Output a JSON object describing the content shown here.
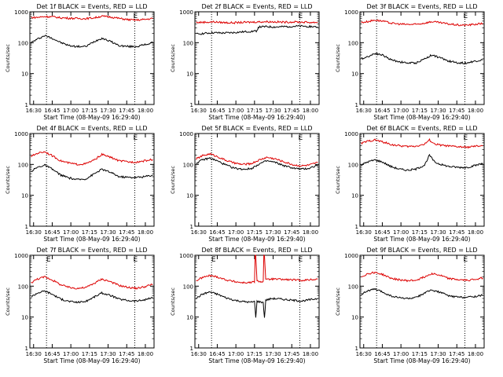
{
  "page": {
    "background": "#ffffff"
  },
  "colors": {
    "events": "#000000",
    "lld": "#dd0000",
    "axis": "#000000"
  },
  "chart_data": [
    {
      "type": "line",
      "title": "Det 1f BLACK = Events, RED = LLD",
      "xlabel": "Start Time (08-May-09 16:29:40)",
      "ylabel": "Counts/sec",
      "ylog": true,
      "ylim": [
        1,
        1000
      ],
      "xlim": [
        0,
        100
      ],
      "xticks": [
        "16:30",
        "16:45",
        "17:00",
        "17:15",
        "17:30",
        "17:45",
        "18:00"
      ],
      "yticks": [
        "1",
        "10",
        "100",
        "1000"
      ],
      "vlines": [
        13.4,
        84.5
      ],
      "flags": [
        {
          "label": "E",
          "x": 85
        }
      ],
      "series": [
        {
          "name": "Events",
          "color": "#000000",
          "x": [
            1,
            6,
            12,
            18,
            25,
            32,
            38,
            45,
            52,
            58,
            65,
            72,
            80,
            86,
            92,
            99
          ],
          "y": [
            100,
            130,
            170,
            140,
            100,
            80,
            75,
            75,
            110,
            140,
            110,
            80,
            75,
            75,
            85,
            100
          ]
        },
        {
          "name": "LLD",
          "color": "#dd0000",
          "x": [
            1,
            6,
            12,
            18,
            25,
            32,
            38,
            45,
            52,
            58,
            65,
            72,
            80,
            86,
            92,
            99
          ],
          "y": [
            650,
            660,
            700,
            690,
            640,
            620,
            610,
            600,
            640,
            720,
            680,
            610,
            550,
            540,
            560,
            610
          ]
        }
      ]
    },
    {
      "type": "line",
      "title": "Det 2f BLACK = Events, RED = LLD",
      "xlabel": "Start Time (08-May-09 16:29:40)",
      "ylabel": "Counts/sec",
      "ylog": true,
      "ylim": [
        1,
        1000
      ],
      "xlim": [
        0,
        100
      ],
      "xticks": [
        "16:30",
        "16:45",
        "17:00",
        "17:15",
        "17:30",
        "17:45",
        "18:00"
      ],
      "yticks": [
        "1",
        "10",
        "100",
        "1000"
      ],
      "vlines": [
        13.4,
        84.5
      ],
      "flags": [
        {
          "label": "E",
          "x": 85
        }
      ],
      "series": [
        {
          "name": "Events",
          "color": "#000000",
          "x": [
            1,
            8,
            15,
            22,
            30,
            37,
            44,
            50,
            51,
            58,
            65,
            72,
            80,
            88,
            95,
            99
          ],
          "y": [
            190,
            200,
            210,
            205,
            210,
            220,
            230,
            240,
            320,
            330,
            320,
            330,
            340,
            340,
            330,
            320
          ]
        },
        {
          "name": "LLD",
          "color": "#dd0000",
          "x": [
            1,
            8,
            15,
            22,
            30,
            37,
            44,
            50,
            58,
            65,
            72,
            80,
            88,
            95,
            99
          ],
          "y": [
            450,
            460,
            470,
            450,
            440,
            450,
            460,
            470,
            480,
            470,
            460,
            470,
            460,
            450,
            460
          ]
        }
      ]
    },
    {
      "type": "line",
      "title": "Det 3f BLACK = Events, RED = LLD",
      "xlabel": "Start Time (08-May-09 16:29:40)",
      "ylabel": "Counts/sec",
      "ylog": true,
      "ylim": [
        1,
        1000
      ],
      "xlim": [
        0,
        100
      ],
      "xticks": [
        "16:30",
        "16:45",
        "17:00",
        "17:15",
        "17:30",
        "17:45",
        "18:00"
      ],
      "yticks": [
        "1",
        "10",
        "100",
        "1000"
      ],
      "vlines": [
        13.4,
        84.5
      ],
      "flags": [
        {
          "label": "E",
          "x": 85
        }
      ],
      "series": [
        {
          "name": "Events",
          "color": "#000000",
          "x": [
            1,
            6,
            12,
            18,
            25,
            32,
            38,
            45,
            52,
            58,
            65,
            72,
            80,
            86,
            92,
            99
          ],
          "y": [
            30,
            35,
            45,
            40,
            28,
            24,
            22,
            22,
            30,
            40,
            32,
            25,
            22,
            22,
            25,
            28
          ]
        },
        {
          "name": "LLD",
          "color": "#dd0000",
          "x": [
            1,
            6,
            12,
            18,
            25,
            32,
            38,
            45,
            52,
            58,
            65,
            72,
            80,
            86,
            92,
            99
          ],
          "y": [
            450,
            480,
            540,
            500,
            430,
            400,
            390,
            390,
            430,
            480,
            440,
            400,
            370,
            370,
            390,
            420
          ]
        }
      ]
    },
    {
      "type": "line",
      "title": "Det 4f BLACK = Events, RED = LLD",
      "xlabel": "Start Time (08-May-09 16:29:40)",
      "ylabel": "Counts/sec",
      "ylog": true,
      "ylim": [
        1,
        1000
      ],
      "xlim": [
        0,
        100
      ],
      "xticks": [
        "16:30",
        "16:45",
        "17:00",
        "17:15",
        "17:30",
        "17:45",
        "18:00"
      ],
      "yticks": [
        "1",
        "10",
        "100",
        "1000"
      ],
      "vlines": [
        13.4,
        84.5
      ],
      "flags": [
        {
          "label": "E",
          "x": 85
        }
      ],
      "series": [
        {
          "name": "Events",
          "color": "#000000",
          "x": [
            1,
            6,
            12,
            18,
            25,
            32,
            38,
            45,
            52,
            58,
            65,
            72,
            80,
            86,
            92,
            99
          ],
          "y": [
            60,
            80,
            95,
            70,
            45,
            36,
            32,
            34,
            50,
            70,
            55,
            40,
            38,
            38,
            40,
            45
          ]
        },
        {
          "name": "LLD",
          "color": "#dd0000",
          "x": [
            1,
            6,
            12,
            18,
            25,
            32,
            38,
            45,
            52,
            58,
            65,
            72,
            80,
            86,
            92,
            99
          ],
          "y": [
            180,
            230,
            260,
            190,
            130,
            110,
            100,
            105,
            140,
            210,
            170,
            130,
            120,
            120,
            130,
            145
          ]
        }
      ]
    },
    {
      "type": "line",
      "title": "Det 5f BLACK = Events, RED = LLD",
      "xlabel": "Start Time (08-May-09 16:29:40)",
      "ylabel": "Counts/sec",
      "ylog": true,
      "ylim": [
        1,
        1000
      ],
      "xlim": [
        0,
        100
      ],
      "xticks": [
        "16:30",
        "16:45",
        "17:00",
        "17:15",
        "17:30",
        "17:45",
        "18:00"
      ],
      "yticks": [
        "1",
        "10",
        "100",
        "1000"
      ],
      "vlines": [
        13.4,
        84.5
      ],
      "flags": [
        {
          "label": "E",
          "x": 85
        }
      ],
      "series": [
        {
          "name": "Events",
          "color": "#000000",
          "x": [
            1,
            6,
            12,
            18,
            25,
            32,
            38,
            45,
            52,
            58,
            65,
            72,
            80,
            86,
            92,
            99
          ],
          "y": [
            110,
            140,
            160,
            130,
            95,
            75,
            70,
            72,
            105,
            130,
            115,
            90,
            75,
            70,
            75,
            95
          ]
        },
        {
          "name": "LLD",
          "color": "#dd0000",
          "x": [
            1,
            6,
            12,
            18,
            25,
            32,
            38,
            45,
            52,
            58,
            65,
            72,
            80,
            86,
            92,
            99
          ],
          "y": [
            150,
            190,
            220,
            180,
            135,
            110,
            100,
            105,
            140,
            170,
            150,
            120,
            95,
            90,
            95,
            115
          ]
        }
      ]
    },
    {
      "type": "line",
      "title": "Det 6f BLACK = Events, RED = LLD",
      "xlabel": "Start Time (08-May-09 16:29:40)",
      "ylabel": "Counts/sec",
      "ylog": true,
      "ylim": [
        1,
        1000
      ],
      "xlim": [
        0,
        100
      ],
      "xticks": [
        "16:30",
        "16:45",
        "17:00",
        "17:15",
        "17:30",
        "17:45",
        "18:00"
      ],
      "yticks": [
        "1",
        "10",
        "100",
        "1000"
      ],
      "vlines": [
        13.4,
        84.5
      ],
      "flags": [
        {
          "label": "E",
          "x": 85
        }
      ],
      "series": [
        {
          "name": "Events",
          "color": "#000000",
          "x": [
            1,
            6,
            12,
            18,
            25,
            32,
            38,
            45,
            52,
            56,
            60,
            65,
            72,
            80,
            86,
            92,
            99
          ],
          "y": [
            95,
            120,
            140,
            120,
            85,
            70,
            65,
            70,
            95,
            200,
            120,
            100,
            85,
            80,
            80,
            90,
            110
          ]
        },
        {
          "name": "LLD",
          "color": "#dd0000",
          "x": [
            1,
            6,
            12,
            18,
            25,
            32,
            38,
            45,
            52,
            56,
            60,
            65,
            72,
            80,
            86,
            92,
            99
          ],
          "y": [
            480,
            560,
            620,
            540,
            440,
            400,
            380,
            390,
            450,
            620,
            460,
            420,
            390,
            370,
            360,
            380,
            410
          ]
        }
      ]
    },
    {
      "type": "line",
      "title": "Det 7f BLACK = Events, RED = LLD",
      "xlabel": "Start Time (08-May-09 16:29:40)",
      "ylabel": "Counts/sec",
      "ylog": true,
      "ylim": [
        1,
        1000
      ],
      "xlim": [
        0,
        100
      ],
      "xticks": [
        "16:30",
        "16:45",
        "17:00",
        "17:15",
        "17:30",
        "17:45",
        "18:00"
      ],
      "yticks": [
        "1",
        "10",
        "100",
        "1000"
      ],
      "vlines": [
        13.4,
        84.5
      ],
      "flags": [
        {
          "label": "E",
          "x": 15
        },
        {
          "label": "E",
          "x": 85
        }
      ],
      "series": [
        {
          "name": "Events",
          "color": "#000000",
          "x": [
            1,
            6,
            12,
            18,
            25,
            32,
            38,
            45,
            52,
            58,
            65,
            72,
            80,
            86,
            92,
            99
          ],
          "y": [
            45,
            60,
            70,
            55,
            38,
            32,
            30,
            32,
            45,
            60,
            50,
            38,
            34,
            33,
            36,
            42
          ]
        },
        {
          "name": "LLD",
          "color": "#dd0000",
          "x": [
            1,
            6,
            12,
            18,
            25,
            32,
            38,
            45,
            52,
            58,
            65,
            72,
            80,
            86,
            92,
            99
          ],
          "y": [
            130,
            170,
            200,
            160,
            110,
            90,
            85,
            90,
            125,
            170,
            140,
            105,
            90,
            85,
            95,
            115
          ]
        }
      ]
    },
    {
      "type": "line",
      "title": "Det 8f BLACK = Events, RED = LLD",
      "xlabel": "Start Time (08-May-09 16:29:40)",
      "ylabel": "Counts/sec",
      "ylog": true,
      "ylim": [
        1,
        1000
      ],
      "xlim": [
        0,
        100
      ],
      "xticks": [
        "16:30",
        "16:45",
        "17:00",
        "17:15",
        "17:30",
        "17:45",
        "18:00"
      ],
      "yticks": [
        "1",
        "10",
        "100",
        "1000"
      ],
      "vlines": [
        13.4,
        84.5
      ],
      "flags": [
        {
          "label": "E",
          "x": 15
        },
        {
          "label": "E",
          "x": 85
        }
      ],
      "series": [
        {
          "name": "Events",
          "color": "#000000",
          "x": [
            1,
            6,
            12,
            18,
            25,
            32,
            38,
            45,
            48,
            49,
            50,
            55,
            56,
            57,
            62,
            70,
            78,
            86,
            92,
            99
          ],
          "y": [
            40,
            55,
            65,
            55,
            42,
            35,
            32,
            30,
            32,
            10,
            32,
            30,
            9,
            35,
            40,
            38,
            35,
            33,
            36,
            40
          ]
        },
        {
          "name": "LLD",
          "color": "#dd0000",
          "x": [
            1,
            6,
            12,
            18,
            25,
            32,
            38,
            45,
            48,
            48.5,
            49,
            50,
            55,
            55.5,
            56,
            57,
            62,
            70,
            78,
            86,
            92,
            99
          ],
          "y": [
            150,
            190,
            220,
            200,
            160,
            140,
            130,
            130,
            140,
            1000,
            1000,
            145,
            140,
            1000,
            1000,
            160,
            170,
            165,
            160,
            155,
            160,
            170
          ]
        }
      ]
    },
    {
      "type": "line",
      "title": "Det 9f BLACK = Events, RED = LLD",
      "xlabel": "Start Time (08-May-09 16:29:40)",
      "ylabel": "Counts/sec",
      "ylog": true,
      "ylim": [
        1,
        1000
      ],
      "xlim": [
        0,
        100
      ],
      "xticks": [
        "16:30",
        "16:45",
        "17:00",
        "17:15",
        "17:30",
        "17:45",
        "18:00"
      ],
      "yticks": [
        "1",
        "10",
        "100",
        "1000"
      ],
      "vlines": [
        13.4,
        84.5
      ],
      "flags": [
        {
          "label": "E",
          "x": 85
        }
      ],
      "series": [
        {
          "name": "Events",
          "color": "#000000",
          "x": [
            1,
            6,
            12,
            18,
            25,
            32,
            38,
            45,
            52,
            58,
            65,
            72,
            80,
            86,
            92,
            99
          ],
          "y": [
            55,
            70,
            80,
            65,
            48,
            42,
            40,
            42,
            60,
            75,
            62,
            48,
            44,
            44,
            46,
            52
          ]
        },
        {
          "name": "LLD",
          "color": "#dd0000",
          "x": [
            1,
            6,
            12,
            18,
            25,
            32,
            38,
            45,
            52,
            58,
            65,
            72,
            80,
            86,
            92,
            99
          ],
          "y": [
            200,
            250,
            280,
            240,
            180,
            160,
            150,
            155,
            200,
            260,
            220,
            175,
            160,
            155,
            165,
            185
          ]
        }
      ]
    }
  ]
}
